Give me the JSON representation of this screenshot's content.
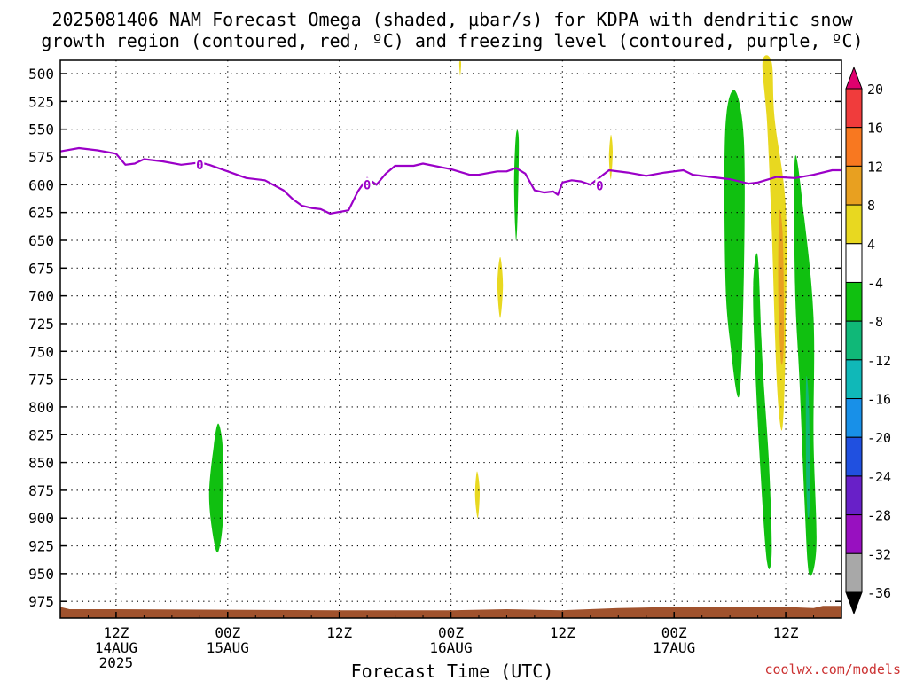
{
  "chart_data": {
    "type": "heatmap",
    "title_lines": [
      "2025081406 NAM Forecast Omega (shaded, µbar/s) for KDPA with dendritic snow",
      "growth region (contoured, red, ºC) and freezing level (contoured, purple, ºC)"
    ],
    "xlabel": "Forecast Time (UTC)",
    "credit": "coolwx.com/models",
    "y_axis": {
      "variable": "pressure (hPa)",
      "inverted": true,
      "range": [
        488,
        990
      ],
      "ticks": [
        500,
        525,
        550,
        575,
        600,
        625,
        650,
        675,
        700,
        725,
        750,
        775,
        800,
        825,
        850,
        875,
        900,
        925,
        950,
        975
      ]
    },
    "x_axis": {
      "range": [
        "2025-08-14T06Z",
        "2025-08-17T18Z"
      ],
      "ticks": [
        {
          "x": "2025-08-14T12Z",
          "lines": [
            "12Z",
            "14AUG",
            "2025"
          ]
        },
        {
          "x": "2025-08-15T00Z",
          "lines": [
            "00Z",
            "15AUG"
          ]
        },
        {
          "x": "2025-08-15T12Z",
          "lines": [
            "12Z"
          ]
        },
        {
          "x": "2025-08-16T00Z",
          "lines": [
            "00Z",
            "16AUG"
          ]
        },
        {
          "x": "2025-08-16T12Z",
          "lines": [
            "12Z"
          ]
        },
        {
          "x": "2025-08-17T00Z",
          "lines": [
            "00Z",
            "17AUG"
          ]
        },
        {
          "x": "2025-08-17T12Z",
          "lines": [
            "12Z"
          ]
        }
      ]
    },
    "grid": "dotted",
    "colorbar": {
      "placement": "right",
      "labels": [
        20,
        16,
        12,
        8,
        4,
        -4,
        -8,
        -12,
        -16,
        -20,
        -24,
        -28,
        -32,
        -36
      ],
      "colors": [
        "#e0006e",
        "#f03c3c",
        "#f87820",
        "#e8a020",
        "#e8d820",
        "#ffffff",
        "#10c010",
        "#10b878",
        "#10b8b8",
        "#1890e8",
        "#2050e0",
        "#6820c8",
        "#9810c0",
        "#a8a8a8",
        "#000000"
      ]
    },
    "freezing_level": {
      "contour_label": "0",
      "color": "#9b00c8",
      "points": [
        [
          "2025-08-14T06Z",
          570
        ],
        [
          "2025-08-14T08Z",
          567
        ],
        [
          "2025-08-14T10Z",
          569
        ],
        [
          "2025-08-14T12Z",
          572
        ],
        [
          "2025-08-14T13Z",
          582
        ],
        [
          "2025-08-14T14Z",
          581
        ],
        [
          "2025-08-14T15Z",
          577
        ],
        [
          "2025-08-14T17Z",
          579
        ],
        [
          "2025-08-14T19Z",
          582
        ],
        [
          "2025-08-14T21Z",
          580
        ],
        [
          "2025-08-14T22Z",
          582
        ],
        [
          "2025-08-15T00Z",
          588
        ],
        [
          "2025-08-15T02Z",
          594
        ],
        [
          "2025-08-15T04Z",
          596
        ],
        [
          "2025-08-15T06Z",
          605
        ],
        [
          "2025-08-15T07Z",
          613
        ],
        [
          "2025-08-15T08Z",
          619
        ],
        [
          "2025-08-15T09Z",
          621
        ],
        [
          "2025-08-15T10Z",
          622
        ],
        [
          "2025-08-15T11Z",
          626
        ],
        [
          "2025-08-15T13Z",
          623
        ],
        [
          "2025-08-15T14Z",
          606
        ],
        [
          "2025-08-15T15Z",
          594
        ],
        [
          "2025-08-15T16Z",
          600
        ],
        [
          "2025-08-15T17Z",
          590
        ],
        [
          "2025-08-15T18Z",
          583
        ],
        [
          "2025-08-15T20Z",
          583
        ],
        [
          "2025-08-15T21Z",
          581
        ],
        [
          "2025-08-16T00Z",
          586
        ],
        [
          "2025-08-16T02Z",
          591
        ],
        [
          "2025-08-16T03Z",
          591
        ],
        [
          "2025-08-16T05Z",
          588
        ],
        [
          "2025-08-16T06Z",
          588
        ],
        [
          "2025-08-16T07Z",
          585
        ],
        [
          "2025-08-16T08Z",
          590
        ],
        [
          "2025-08-16T09Z",
          605
        ],
        [
          "2025-08-16T10Z",
          607
        ],
        [
          "2025-08-16T11Z",
          606
        ],
        [
          "2025-08-16T11.5Z",
          609
        ],
        [
          "2025-08-16T12Z",
          598
        ],
        [
          "2025-08-16T13Z",
          596
        ],
        [
          "2025-08-16T14Z",
          597
        ],
        [
          "2025-08-16T15Z",
          600
        ],
        [
          "2025-08-16T17Z",
          587
        ],
        [
          "2025-08-16T19Z",
          589
        ],
        [
          "2025-08-16T21Z",
          592
        ],
        [
          "2025-08-16T23Z",
          589
        ],
        [
          "2025-08-17T01Z",
          587
        ],
        [
          "2025-08-17T02Z",
          591
        ],
        [
          "2025-08-17T04Z",
          593
        ],
        [
          "2025-08-17T06Z",
          595
        ],
        [
          "2025-08-17T08Z",
          599
        ],
        [
          "2025-08-17T09Z",
          598
        ],
        [
          "2025-08-17T11Z",
          593
        ],
        [
          "2025-08-17T13Z",
          594
        ],
        [
          "2025-08-17T15Z",
          591
        ],
        [
          "2025-08-17T17Z",
          587
        ],
        [
          "2025-08-17T18Z",
          587
        ]
      ],
      "labels_at": [
        [
          "2025-08-14T21Z",
          582
        ],
        [
          "2025-08-15T15Z",
          600
        ],
        [
          "2025-08-16T16Z",
          601
        ]
      ]
    },
    "omega_regions": [
      {
        "name": "green-15aug",
        "value_band": "-4 to -8",
        "color": "#10c010",
        "points": [
          [
            "2025-08-14T22.5Z",
            835
          ],
          [
            "2025-08-14T23Z",
            815
          ],
          [
            "2025-08-14T23.5Z",
            840
          ],
          [
            "2025-08-14T23.5Z",
            900
          ],
          [
            "2025-08-14T23Z",
            930
          ],
          [
            "2025-08-14T22.5Z",
            920
          ],
          [
            "2025-08-14T22Z",
            880
          ]
        ]
      },
      {
        "name": "yellow-top",
        "value_band": "4 to 8",
        "color": "#e8d820",
        "points": [
          [
            "2025-08-16T00.9Z",
            490
          ],
          [
            "2025-08-16T01.1Z",
            490
          ],
          [
            "2025-08-16T01.0Z",
            502
          ]
        ]
      },
      {
        "name": "green-16aug",
        "value_band": "-4 to -8",
        "color": "#10c010",
        "points": [
          [
            "2025-08-16T07Z",
            555
          ],
          [
            "2025-08-16T07.3Z",
            560
          ],
          [
            "2025-08-16T07.2Z",
            620
          ],
          [
            "2025-08-16T07Z",
            650
          ],
          [
            "2025-08-16T06.8Z",
            600
          ]
        ]
      },
      {
        "name": "yellow-16aug-upper",
        "value_band": "4 to 8",
        "color": "#e8d820",
        "points": [
          [
            "2025-08-16T17.2Z",
            555
          ],
          [
            "2025-08-16T17.4Z",
            570
          ],
          [
            "2025-08-16T17.2Z",
            595
          ],
          [
            "2025-08-16T17.0Z",
            575
          ]
        ]
      },
      {
        "name": "yellow-16aug-mid",
        "value_band": "4 to 8",
        "color": "#e8d820",
        "points": [
          [
            "2025-08-16T05.3Z",
            665
          ],
          [
            "2025-08-16T05.6Z",
            690
          ],
          [
            "2025-08-16T05.3Z",
            720
          ],
          [
            "2025-08-16T05.0Z",
            690
          ]
        ]
      },
      {
        "name": "yellow-16aug-low",
        "value_band": "4 to 8",
        "color": "#e8d820",
        "points": [
          [
            "2025-08-16T02.8Z",
            858
          ],
          [
            "2025-08-16T03.1Z",
            875
          ],
          [
            "2025-08-16T02.9Z",
            900
          ],
          [
            "2025-08-16T02.6Z",
            880
          ]
        ]
      },
      {
        "name": "green-17aug-a",
        "value_band": "-4 to -8",
        "color": "#10c010",
        "points": [
          [
            "2025-08-17T05.5Z",
            550
          ],
          [
            "2025-08-17T06.5Z",
            515
          ],
          [
            "2025-08-17T07.5Z",
            560
          ],
          [
            "2025-08-17T07.5Z",
            680
          ],
          [
            "2025-08-17T07Z",
            790
          ],
          [
            "2025-08-17T06Z",
            740
          ],
          [
            "2025-08-17T05.5Z",
            680
          ]
        ]
      },
      {
        "name": "green-17aug-b",
        "value_band": "-4 to -8",
        "color": "#10c010",
        "points": [
          [
            "2025-08-17T08.5Z",
            690
          ],
          [
            "2025-08-17T09Z",
            665
          ],
          [
            "2025-08-17T09.5Z",
            760
          ],
          [
            "2025-08-17T10.2Z",
            850
          ],
          [
            "2025-08-17T10.5Z",
            930
          ],
          [
            "2025-08-17T10Z",
            940
          ],
          [
            "2025-08-17T09.3Z",
            860
          ],
          [
            "2025-08-17T08.7Z",
            760
          ]
        ]
      },
      {
        "name": "green-17aug-c",
        "value_band": "-4 to -8",
        "color": "#10c010",
        "points": [
          [
            "2025-08-17T13Z",
            575
          ],
          [
            "2025-08-17T14Z",
            630
          ],
          [
            "2025-08-17T15Z",
            720
          ],
          [
            "2025-08-17T15Z",
            830
          ],
          [
            "2025-08-17T15.3Z",
            925
          ],
          [
            "2025-08-17T14.5Z",
            950
          ],
          [
            "2025-08-17T14Z",
            880
          ],
          [
            "2025-08-17T13.5Z",
            780
          ],
          [
            "2025-08-17T13Z",
            690
          ]
        ]
      },
      {
        "name": "teal-17aug",
        "value_band": "-8 to -12",
        "color": "#10b878",
        "points": [
          [
            "2025-08-17T14.2Z",
            775
          ],
          [
            "2025-08-17T14.5Z",
            800
          ],
          [
            "2025-08-17T14.6Z",
            880
          ],
          [
            "2025-08-17T14.4Z",
            900
          ],
          [
            "2025-08-17T14.2Z",
            860
          ]
        ]
      },
      {
        "name": "yellow-17aug",
        "value_band": "4 to 8",
        "color": "#e8d820",
        "points": [
          [
            "2025-08-17T09.5Z",
            490
          ],
          [
            "2025-08-17T10.5Z",
            490
          ],
          [
            "2025-08-17T10.8Z",
            540
          ],
          [
            "2025-08-17T12Z",
            620
          ],
          [
            "2025-08-17T12Z",
            730
          ],
          [
            "2025-08-17T11.8Z",
            800
          ],
          [
            "2025-08-17T11.5Z",
            820
          ],
          [
            "2025-08-17T11Z",
            770
          ],
          [
            "2025-08-17T10.5Z",
            640
          ],
          [
            "2025-08-17T10Z",
            545
          ]
        ]
      },
      {
        "name": "orange-17aug",
        "value_band": "8 to 12",
        "color": "#e8a020",
        "points": [
          [
            "2025-08-17T11.3Z",
            625
          ],
          [
            "2025-08-17T11.7Z",
            650
          ],
          [
            "2025-08-17T11.8Z",
            740
          ],
          [
            "2025-08-17T11.5Z",
            760
          ],
          [
            "2025-08-17T11.2Z",
            700
          ]
        ]
      }
    ],
    "terrain": {
      "label": "surface",
      "color": "#a0522d",
      "points": [
        [
          "2025-08-14T06Z",
          980
        ],
        [
          "2025-08-14T07Z",
          982
        ],
        [
          "2025-08-14T12Z",
          982
        ],
        [
          "2025-08-15T12Z",
          983
        ],
        [
          "2025-08-16T00Z",
          983
        ],
        [
          "2025-08-16T06Z",
          982
        ],
        [
          "2025-08-16T12Z",
          983
        ],
        [
          "2025-08-16T18Z",
          981
        ],
        [
          "2025-08-17T00Z",
          980
        ],
        [
          "2025-08-17T12Z",
          980
        ],
        [
          "2025-08-17T15Z",
          981
        ],
        [
          "2025-08-17T16Z",
          979
        ],
        [
          "2025-08-17T18Z",
          979
        ]
      ]
    }
  }
}
